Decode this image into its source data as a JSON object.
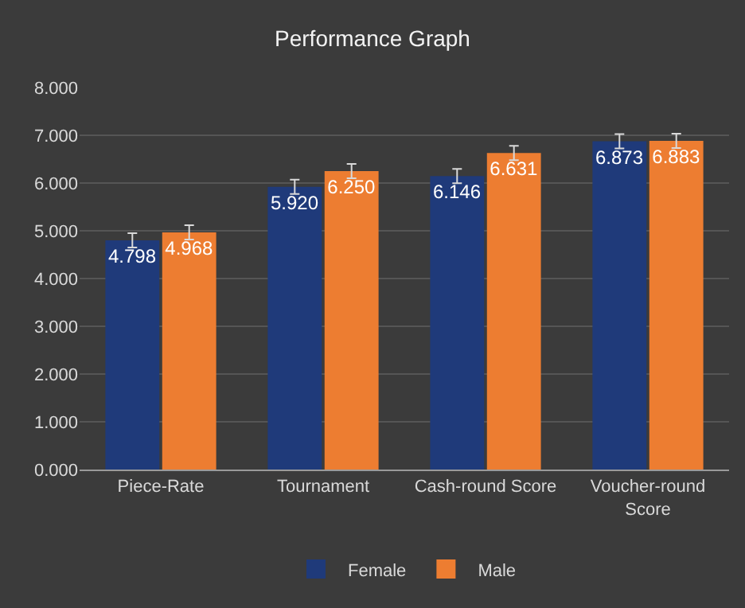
{
  "chart_data": {
    "type": "bar",
    "title": "Performance Graph",
    "categories": [
      "Piece-Rate",
      "Tournament",
      "Cash-round Score",
      "Voucher-round Score"
    ],
    "series": [
      {
        "name": "Female",
        "color": "#1f3a7a",
        "values": [
          4.798,
          5.92,
          6.146,
          6.873
        ],
        "value_labels": [
          "4.798",
          "5.920",
          "6.146",
          "6.873"
        ],
        "errors": [
          0.15,
          0.15,
          0.15,
          0.15
        ]
      },
      {
        "name": "Male",
        "color": "#ed7d31",
        "values": [
          4.968,
          6.25,
          6.631,
          6.883
        ],
        "value_labels": [
          "4.968",
          "6.250",
          "6.631",
          "6.883"
        ],
        "errors": [
          0.15,
          0.15,
          0.15,
          0.15
        ]
      }
    ],
    "ylim": [
      0,
      8
    ],
    "yticks": [
      {
        "value": 0,
        "label": "0.000"
      },
      {
        "value": 1,
        "label": "1.000"
      },
      {
        "value": 2,
        "label": "2.000"
      },
      {
        "value": 3,
        "label": "3.000"
      },
      {
        "value": 4,
        "label": "4.000"
      },
      {
        "value": 5,
        "label": "5.000"
      },
      {
        "value": 6,
        "label": "6.000"
      },
      {
        "value": 7,
        "label": "7.000"
      },
      {
        "value": 8,
        "label": "8.000"
      }
    ],
    "grid": "y",
    "legend": "bottom"
  }
}
